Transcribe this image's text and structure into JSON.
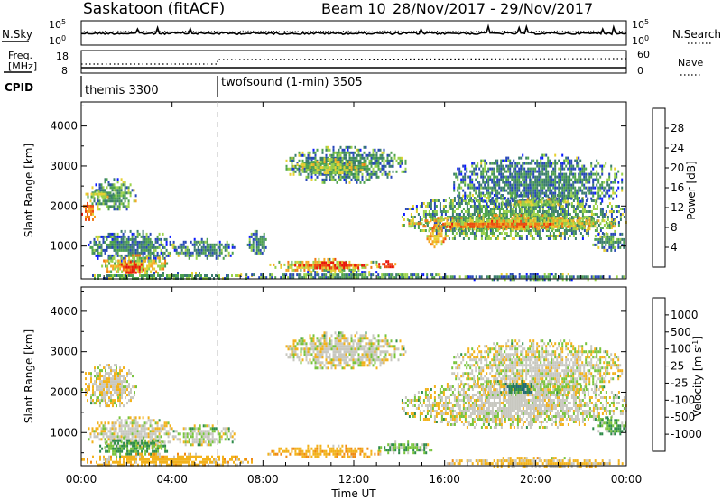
{
  "header": {
    "station": "Saskatoon (fitACF)",
    "beam": "Beam 10",
    "dates": "28/Nov/2017 - 29/Nov/2017"
  },
  "nsky_panel": {
    "left_label": "N.Sky",
    "left_ticks": [
      "10^5",
      "10^0"
    ],
    "right_label": "N.Search",
    "right_ticks": [
      "10^5",
      "10^0"
    ]
  },
  "freq_panel": {
    "left_label_1": "Freq.",
    "left_label_2": "[MHz]",
    "left_ticks": [
      "18",
      "8"
    ],
    "right_label": "Nave",
    "right_ticks": [
      "60",
      "0"
    ]
  },
  "cpid_panel": {
    "label": "CPID",
    "modes": [
      {
        "name": "themis 3300",
        "start_hour": 0
      },
      {
        "name": "twofsound (1-min) 3505",
        "start_hour": 6
      }
    ]
  },
  "chart_data": [
    {
      "type": "heatmap",
      "name": "power",
      "xlabel": "",
      "ylabel": "Slant Range [km]",
      "x_range_hours": [
        0,
        24
      ],
      "ylim": [
        180,
        4600
      ],
      "yticks": [
        1000,
        2000,
        3000,
        4000
      ],
      "colorbar": {
        "label": "Power [dB]",
        "ticks": [
          "28",
          "24",
          "20",
          "16",
          "12",
          "8",
          "4"
        ],
        "range": [
          0,
          30
        ],
        "colors": [
          "#0a1aff",
          "#2747b8",
          "#3c7d6e",
          "#4ea24e",
          "#9ad24a",
          "#e6d032",
          "#f5a623",
          "#f07a16",
          "#ee4a12",
          "#e8160c"
        ]
      },
      "regions": [
        {
          "x": [
            0.0,
            0.6
          ],
          "y": [
            1650,
            2100
          ],
          "value": 22
        },
        {
          "x": [
            0.3,
            2.4
          ],
          "y": [
            1900,
            2700
          ],
          "value": 10
        },
        {
          "x": [
            0.1,
            1.4
          ],
          "y": [
            2200,
            2400
          ],
          "value": 14
        },
        {
          "x": [
            0.3,
            4.2
          ],
          "y": [
            600,
            1400
          ],
          "value": 8
        },
        {
          "x": [
            0.8,
            3.8
          ],
          "y": [
            300,
            800
          ],
          "value": 16
        },
        {
          "x": [
            1.5,
            2.7
          ],
          "y": [
            320,
            640
          ],
          "value": 27
        },
        {
          "x": [
            0.0,
            7.5
          ],
          "y": [
            180,
            360
          ],
          "value": 10
        },
        {
          "x": [
            4.0,
            6.8
          ],
          "y": [
            700,
            1200
          ],
          "value": 8
        },
        {
          "x": [
            7.3,
            8.2
          ],
          "y": [
            800,
            1400
          ],
          "value": 8
        },
        {
          "x": [
            9.0,
            14.3
          ],
          "y": [
            2600,
            3500
          ],
          "value": 9
        },
        {
          "x": [
            9.4,
            12.5
          ],
          "y": [
            2800,
            3200
          ],
          "value": 14
        },
        {
          "x": [
            8.2,
            13.2
          ],
          "y": [
            400,
            700
          ],
          "value": 16
        },
        {
          "x": [
            9.3,
            12.8
          ],
          "y": [
            470,
            620
          ],
          "value": 28
        },
        {
          "x": [
            13.0,
            14.0
          ],
          "y": [
            450,
            650
          ],
          "value": 26
        },
        {
          "x": [
            7.0,
            16.0
          ],
          "y": [
            180,
            380
          ],
          "value": 9
        },
        {
          "x": [
            14.1,
            24.0
          ],
          "y": [
            1150,
            2300
          ],
          "value": 10
        },
        {
          "x": [
            14.4,
            23.5
          ],
          "y": [
            1400,
            1800
          ],
          "value": 16
        },
        {
          "x": [
            15.5,
            21.5
          ],
          "y": [
            1450,
            1650
          ],
          "value": 23
        },
        {
          "x": [
            15.2,
            16.0
          ],
          "y": [
            1000,
            1550
          ],
          "value": 18
        },
        {
          "x": [
            16.3,
            23.8
          ],
          "y": [
            1950,
            3300
          ],
          "value": 8
        },
        {
          "x": [
            18.5,
            21.5
          ],
          "y": [
            2000,
            2200
          ],
          "value": 14
        },
        {
          "x": [
            16.0,
            24.0
          ],
          "y": [
            180,
            330
          ],
          "value": 8
        },
        {
          "x": [
            22.5,
            24.0
          ],
          "y": [
            900,
            1400
          ],
          "value": 10
        }
      ]
    },
    {
      "type": "heatmap",
      "name": "velocity",
      "xlabel": "Time UT",
      "ylabel": "Slant Range [km]",
      "x_range_hours": [
        0,
        24
      ],
      "xticks": [
        "00:00",
        "04:00",
        "08:00",
        "12:00",
        "16:00",
        "20:00",
        "00:00"
      ],
      "ylim": [
        180,
        4600
      ],
      "yticks": [
        1000,
        2000,
        3000,
        4000
      ],
      "colorbar": {
        "label": "Velocity [m s^-1]",
        "ticks": [
          "1000",
          "500",
          "100",
          "25",
          "-25",
          "-100",
          "-500",
          "-1000"
        ],
        "colors": [
          "#1f3fbf",
          "#246a78",
          "#2f8c4a",
          "#78c43c",
          "#c8c8c0",
          "#f2b21c",
          "#f08a12",
          "#ee5c10",
          "#e8160c"
        ],
        "scatter_color": "#c8c8c0"
      },
      "regions": [
        {
          "x": [
            0.0,
            2.4
          ],
          "y": [
            1650,
            2700
          ],
          "value": -10
        },
        {
          "x": [
            0.3,
            4.2
          ],
          "y": [
            600,
            1400
          ],
          "value": 0
        },
        {
          "x": [
            0.8,
            3.8
          ],
          "y": [
            400,
            900
          ],
          "value": 70
        },
        {
          "x": [
            0.0,
            7.5
          ],
          "y": [
            180,
            500
          ],
          "value": -60
        },
        {
          "x": [
            4.0,
            6.8
          ],
          "y": [
            700,
            1200
          ],
          "value": 10
        },
        {
          "x": [
            9.0,
            14.3
          ],
          "y": [
            2600,
            3500
          ],
          "value": 0
        },
        {
          "x": [
            8.2,
            13.2
          ],
          "y": [
            380,
            700
          ],
          "value": -80
        },
        {
          "x": [
            13.0,
            15.5
          ],
          "y": [
            500,
            800
          ],
          "value": 40
        },
        {
          "x": [
            14.1,
            24.0
          ],
          "y": [
            1150,
            2300
          ],
          "value": 0
        },
        {
          "x": [
            16.3,
            23.8
          ],
          "y": [
            1950,
            3300
          ],
          "value": 0
        },
        {
          "x": [
            18.5,
            20.0
          ],
          "y": [
            2000,
            2300
          ],
          "value": 300
        },
        {
          "x": [
            22.5,
            24.0
          ],
          "y": [
            950,
            1400
          ],
          "value": 60
        },
        {
          "x": [
            16.0,
            24.0
          ],
          "y": [
            180,
            400
          ],
          "value": -40
        }
      ]
    }
  ]
}
